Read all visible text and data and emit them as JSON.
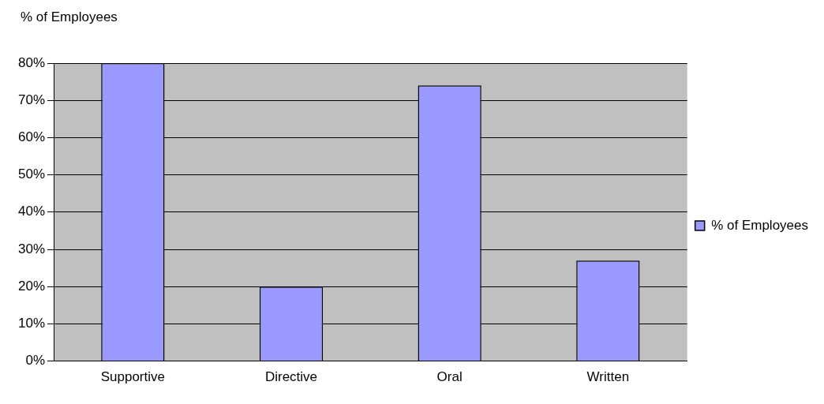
{
  "chart_data": {
    "type": "bar",
    "title": "% of Employees",
    "categories": [
      "Supportive",
      "Directive",
      "Oral",
      "Written"
    ],
    "series": [
      {
        "name": "% of Employees",
        "color": "#9999ff",
        "values": [
          80,
          20,
          74,
          27
        ]
      }
    ],
    "ylim": [
      0,
      80
    ],
    "yticks": [
      {
        "value": 0,
        "label": "0%"
      },
      {
        "value": 10,
        "label": "10%"
      },
      {
        "value": 20,
        "label": "20%"
      },
      {
        "value": 30,
        "label": "30%"
      },
      {
        "value": 40,
        "label": "40%"
      },
      {
        "value": 50,
        "label": "50%"
      },
      {
        "value": 60,
        "label": "60%"
      },
      {
        "value": 70,
        "label": "70%"
      },
      {
        "value": 80,
        "label": "80%"
      }
    ],
    "grid": "y",
    "legend": "right"
  }
}
